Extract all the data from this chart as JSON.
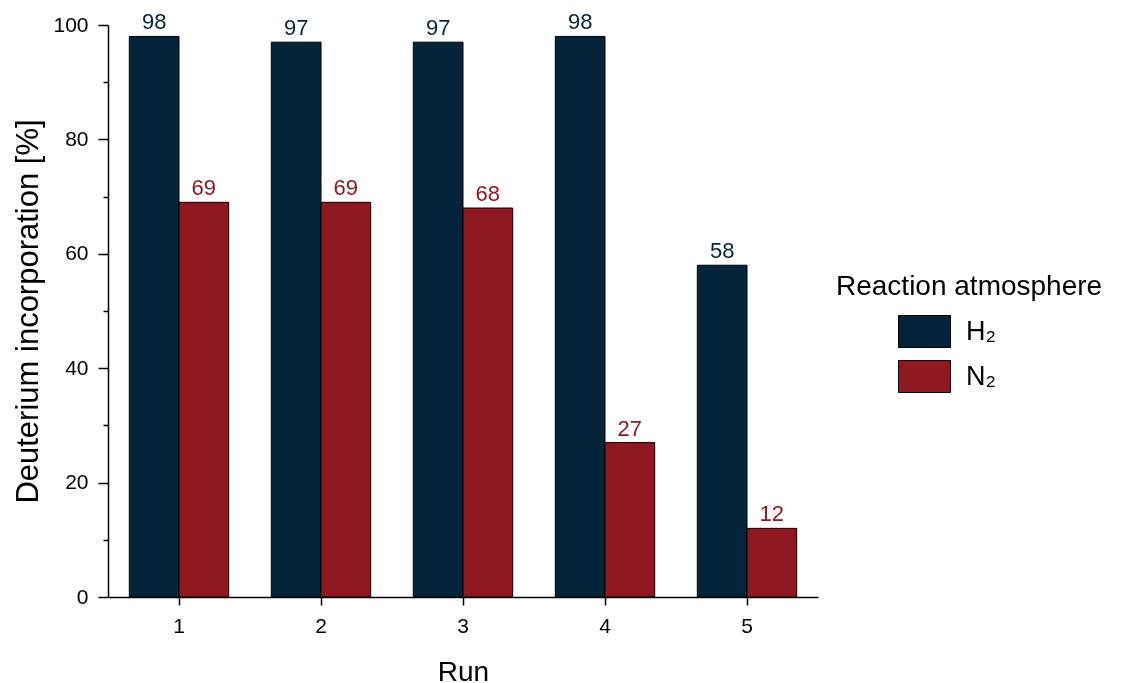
{
  "chart_data": {
    "type": "bar",
    "categories": [
      "1",
      "2",
      "3",
      "4",
      "5"
    ],
    "series": [
      {
        "name": "H₂",
        "color": "#03243a",
        "values": [
          98,
          97,
          97,
          98,
          58
        ]
      },
      {
        "name": "N₂",
        "color": "#901820",
        "values": [
          69,
          69,
          68,
          27,
          12
        ]
      }
    ],
    "xlabel": "Run",
    "ylabel": "Deuterium incorporation [%]",
    "legend_title": "Reaction atmosphere",
    "legend": "right",
    "ylim": [
      0,
      100
    ],
    "yticks": [
      0,
      {
        "value": 10,
        "label": null
      },
      20,
      {
        "value": 30,
        "label": null
      },
      40,
      {
        "value": 50,
        "label": null
      },
      60,
      {
        "value": 70,
        "label": null
      },
      80,
      {
        "value": 90,
        "label": null
      },
      100
    ],
    "data_labels": true
  }
}
